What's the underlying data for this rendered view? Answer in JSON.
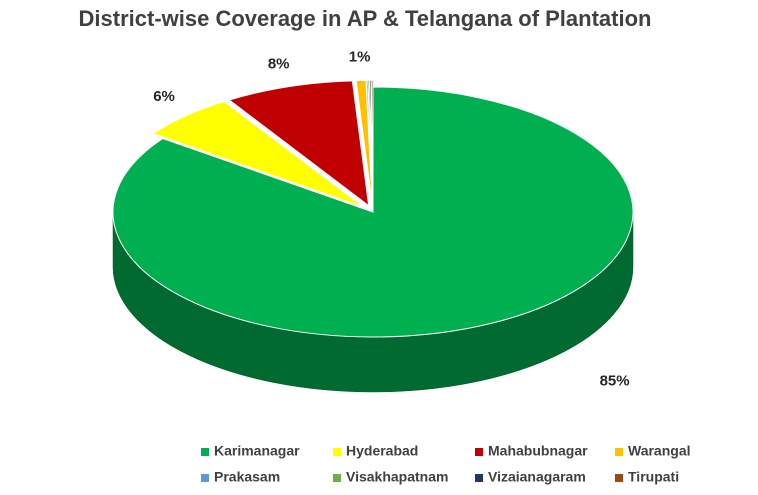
{
  "chart_data": {
    "type": "pie",
    "title": "District-wise Coverage in AP & Telangana of Plantation",
    "categories": [
      "Karimanagar",
      "Hyderabad",
      "Mahabubnagar",
      "Warangal",
      "Prakasam",
      "Visakhapatnam",
      "Vizaianagaram",
      "Tirupati"
    ],
    "values": [
      85,
      6,
      8,
      0.6,
      0.1,
      0.1,
      0.1,
      0.1
    ],
    "value_labels": [
      "85%",
      "6%",
      "8%",
      "1%",
      null,
      null,
      null,
      null
    ],
    "colors": [
      "#00b050",
      "#ffff00",
      "#c00000",
      "#ffc000",
      "#5b9bd5",
      "#70ad47",
      "#203864",
      "#9e480e"
    ],
    "legend": "bottom"
  }
}
